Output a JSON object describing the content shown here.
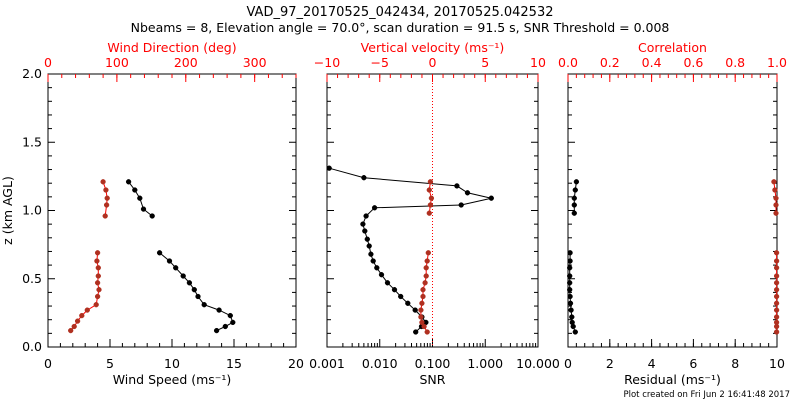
{
  "figure": {
    "title_line1": "VAD_97_20170525_042434, 20170525.042532",
    "title_line2": "Nbeams = 8, Elevation angle = 70.0°, scan duration = 91.5 s, SNR Threshold = 0.008",
    "footer": "Plot created on Fri Jun  2 16:41:48 2017"
  },
  "colors": {
    "black": "#000000",
    "red": "#ff0000",
    "marker_red": "#b03020"
  },
  "chart_data": [
    {
      "type": "line",
      "panel": "wind",
      "ylabel_left": "z (km AGL)",
      "ylim": [
        0,
        2
      ],
      "yticks": [
        "0.0",
        "0.5",
        "1.0",
        "1.5",
        "2.0"
      ],
      "bottom_axis": {
        "label": "Wind Speed (ms⁻¹)",
        "xlim": [
          0,
          20
        ],
        "ticks": [
          "0",
          "5",
          "10",
          "15",
          "20"
        ]
      },
      "top_axis": {
        "label": "Wind Direction (deg)",
        "xlim": [
          0,
          360
        ],
        "ticks": [
          "0",
          "100",
          "200",
          "300"
        ]
      },
      "series": [
        {
          "axis": "bottom",
          "color": "black",
          "segments": [
            [
              [
                6.5,
                1.21
              ],
              [
                7.0,
                1.15
              ],
              [
                7.4,
                1.09
              ],
              [
                7.7,
                1.01
              ],
              [
                8.4,
                0.96
              ]
            ],
            [
              [
                9.0,
                0.69
              ],
              [
                9.8,
                0.63
              ],
              [
                10.3,
                0.58
              ],
              [
                10.9,
                0.52
              ],
              [
                11.4,
                0.47
              ],
              [
                11.8,
                0.42
              ],
              [
                12.1,
                0.37
              ],
              [
                12.6,
                0.31
              ],
              [
                13.8,
                0.27
              ],
              [
                14.7,
                0.23
              ],
              [
                14.9,
                0.18
              ],
              [
                14.3,
                0.15
              ],
              [
                13.6,
                0.12
              ]
            ]
          ]
        },
        {
          "axis": "top",
          "color": "red",
          "segments": [
            [
              [
                80,
                1.21
              ],
              [
                84,
                1.15
              ],
              [
                86,
                1.09
              ],
              [
                85,
                1.04
              ],
              [
                83,
                0.96
              ]
            ],
            [
              [
                72,
                0.69
              ],
              [
                71,
                0.63
              ],
              [
                73,
                0.58
              ],
              [
                73,
                0.52
              ],
              [
                72,
                0.47
              ],
              [
                74,
                0.42
              ],
              [
                72,
                0.37
              ],
              [
                70,
                0.31
              ],
              [
                57,
                0.27
              ],
              [
                49,
                0.23
              ],
              [
                43,
                0.19
              ],
              [
                38,
                0.15
              ],
              [
                33,
                0.12
              ]
            ]
          ]
        }
      ]
    },
    {
      "type": "line",
      "panel": "snr",
      "ylim": [
        0,
        2
      ],
      "bottom_axis": {
        "label": "SNR",
        "scale": "log",
        "xlim": [
          0.001,
          10
        ],
        "ticks": [
          "0.001",
          "0.010",
          "0.100",
          "1.000",
          "10.000"
        ]
      },
      "top_axis": {
        "label": "Vertical velocity (ms⁻¹)",
        "xlim": [
          -10,
          10
        ],
        "ticks": [
          "−10",
          "−5",
          "0",
          "5",
          "10"
        ]
      },
      "reference_line": {
        "axis": "top",
        "x": 0,
        "style": "dotted",
        "color": "red"
      },
      "series": [
        {
          "axis": "bottom",
          "color": "black",
          "segments": [
            [
              [
                0.0011,
                1.31
              ],
              [
                0.005,
                1.24
              ],
              [
                0.29,
                1.18
              ],
              [
                0.46,
                1.13
              ],
              [
                1.3,
                1.09
              ],
              [
                0.35,
                1.04
              ],
              [
                0.008,
                1.02
              ],
              [
                0.0055,
                0.96
              ],
              [
                0.0048,
                0.9
              ],
              [
                0.0052,
                0.85
              ],
              [
                0.0058,
                0.79
              ],
              [
                0.0063,
                0.74
              ],
              [
                0.0068,
                0.68
              ],
              [
                0.0075,
                0.63
              ],
              [
                0.0088,
                0.58
              ],
              [
                0.0108,
                0.53
              ],
              [
                0.014,
                0.47
              ],
              [
                0.019,
                0.42
              ],
              [
                0.025,
                0.37
              ],
              [
                0.034,
                0.32
              ],
              [
                0.047,
                0.27
              ],
              [
                0.063,
                0.22
              ],
              [
                0.075,
                0.18
              ],
              [
                0.062,
                0.15
              ],
              [
                0.048,
                0.11
              ]
            ]
          ]
        },
        {
          "axis": "top",
          "color": "red",
          "segments": [
            [
              [
                -0.2,
                1.21
              ],
              [
                -0.3,
                1.15
              ],
              [
                -0.1,
                1.09
              ],
              [
                -0.2,
                1.04
              ],
              [
                -0.3,
                0.98
              ]
            ],
            [
              [
                -0.4,
                0.69
              ],
              [
                -0.5,
                0.63
              ],
              [
                -0.6,
                0.58
              ],
              [
                -0.6,
                0.52
              ],
              [
                -0.7,
                0.47
              ],
              [
                -0.9,
                0.42
              ],
              [
                -0.9,
                0.37
              ],
              [
                -1.0,
                0.32
              ],
              [
                -1.1,
                0.27
              ],
              [
                -1.1,
                0.22
              ],
              [
                -1.0,
                0.18
              ],
              [
                -0.8,
                0.15
              ],
              [
                -0.5,
                0.11
              ]
            ]
          ]
        }
      ]
    },
    {
      "type": "line",
      "panel": "residual",
      "ylim": [
        0,
        2
      ],
      "bottom_axis": {
        "label": "Residual (ms⁻¹)",
        "xlim": [
          0,
          10
        ],
        "ticks": [
          "0",
          "2",
          "4",
          "6",
          "8",
          "10"
        ]
      },
      "top_axis": {
        "label": "Correlation",
        "xlim": [
          0,
          1
        ],
        "ticks": [
          "0.0",
          "0.2",
          "0.4",
          "0.6",
          "0.8",
          "1.0"
        ]
      },
      "series": [
        {
          "axis": "bottom",
          "color": "black",
          "segments": [
            [
              [
                0.4,
                1.21
              ],
              [
                0.35,
                1.15
              ],
              [
                0.3,
                1.09
              ],
              [
                0.3,
                1.04
              ],
              [
                0.3,
                0.98
              ]
            ],
            [
              [
                0.1,
                0.69
              ],
              [
                0.1,
                0.63
              ],
              [
                0.08,
                0.58
              ],
              [
                0.08,
                0.52
              ],
              [
                0.08,
                0.47
              ],
              [
                0.08,
                0.42
              ],
              [
                0.1,
                0.37
              ],
              [
                0.12,
                0.32
              ],
              [
                0.15,
                0.27
              ],
              [
                0.18,
                0.22
              ],
              [
                0.2,
                0.18
              ],
              [
                0.25,
                0.15
              ],
              [
                0.35,
                0.11
              ]
            ]
          ]
        },
        {
          "axis": "top",
          "color": "red",
          "segments": [
            [
              [
                0.985,
                1.21
              ],
              [
                0.99,
                1.15
              ],
              [
                0.995,
                1.09
              ],
              [
                0.995,
                1.04
              ],
              [
                0.995,
                0.98
              ]
            ],
            [
              [
                0.998,
                0.69
              ],
              [
                0.998,
                0.63
              ],
              [
                0.998,
                0.58
              ],
              [
                0.998,
                0.52
              ],
              [
                0.998,
                0.47
              ],
              [
                0.998,
                0.42
              ],
              [
                0.998,
                0.37
              ],
              [
                0.998,
                0.32
              ],
              [
                0.998,
                0.27
              ],
              [
                0.998,
                0.22
              ],
              [
                0.998,
                0.18
              ],
              [
                0.998,
                0.15
              ],
              [
                0.998,
                0.11
              ]
            ]
          ]
        }
      ]
    }
  ]
}
